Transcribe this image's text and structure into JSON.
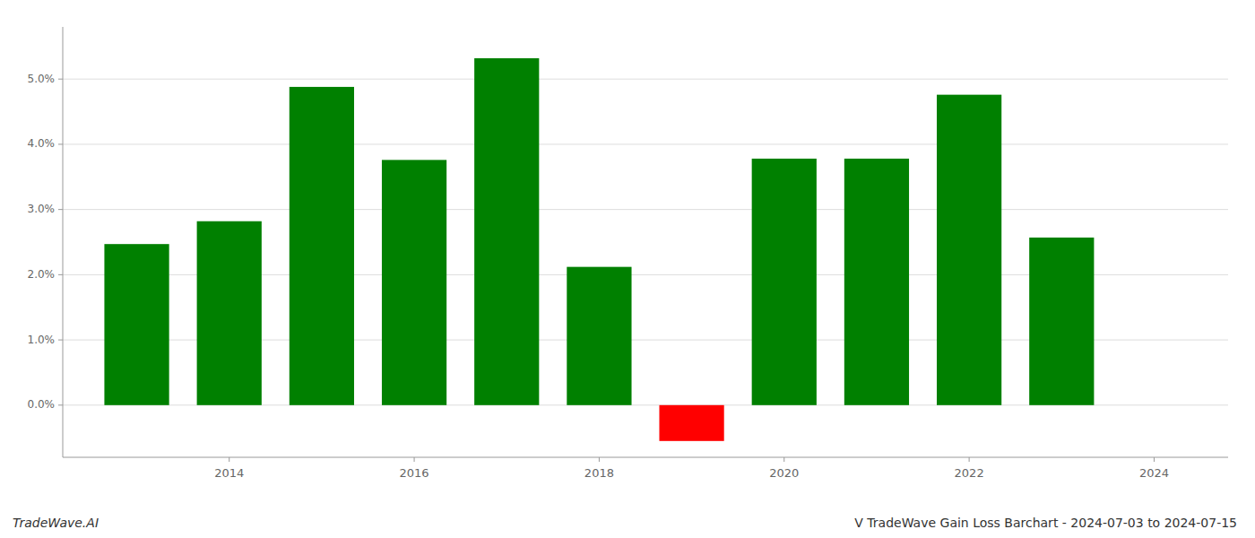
{
  "chart_data": {
    "type": "bar",
    "title": "V TradeWave Gain Loss Barchart - 2024-07-03 to 2024-07-15",
    "annotations": [
      "TradeWave.AI"
    ],
    "x": [
      2013,
      2014,
      2015,
      2016,
      2017,
      2018,
      2019,
      2020,
      2021,
      2022,
      2023
    ],
    "values": [
      0.0247,
      0.0282,
      0.0488,
      0.0376,
      0.0532,
      0.0212,
      -0.0055,
      0.0378,
      0.0378,
      0.0476,
      0.0257
    ],
    "colors": [
      "#008000",
      "#008000",
      "#008000",
      "#008000",
      "#008000",
      "#008000",
      "#ff0000",
      "#008000",
      "#008000",
      "#008000",
      "#008000"
    ],
    "xlim": [
      2012.2,
      2024.8
    ],
    "xticks": [
      2014,
      2016,
      2018,
      2020,
      2022,
      2024
    ],
    "ylim": [
      -0.008,
      0.058
    ],
    "yticks": [
      {
        "value": 0.0,
        "label": "0.0%"
      },
      {
        "value": 0.01,
        "label": "1.0%"
      },
      {
        "value": 0.02,
        "label": "2.0%"
      },
      {
        "value": 0.03,
        "label": "3.0%"
      },
      {
        "value": 0.04,
        "label": "4.0%"
      },
      {
        "value": 0.05,
        "label": "5.0%"
      }
    ],
    "grid": true
  }
}
